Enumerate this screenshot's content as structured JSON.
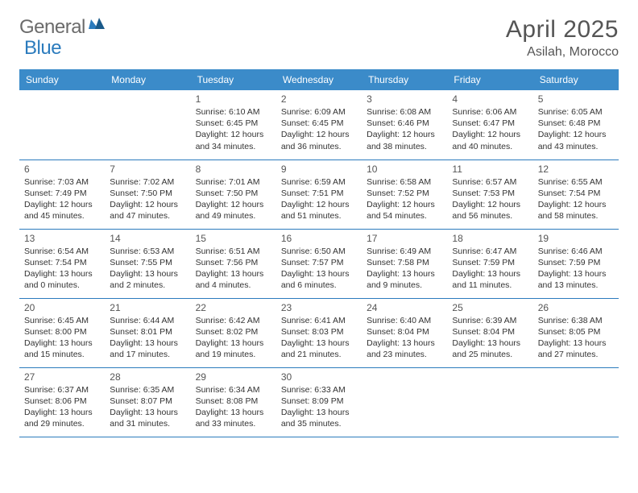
{
  "brand": {
    "part1": "General",
    "part2": "Blue"
  },
  "title": "April 2025",
  "location": "Asilah, Morocco",
  "colors": {
    "header_bg": "#3b8bc9",
    "rule": "#2b7bbd",
    "brand_gray": "#6b6b6b",
    "brand_blue": "#2b7bbd",
    "text": "#333333",
    "title_text": "#555555"
  },
  "day_headers": [
    "Sunday",
    "Monday",
    "Tuesday",
    "Wednesday",
    "Thursday",
    "Friday",
    "Saturday"
  ],
  "weeks": [
    [
      null,
      null,
      {
        "n": "1",
        "sr": "6:10 AM",
        "ss": "6:45 PM",
        "dl": "12 hours and 34 minutes."
      },
      {
        "n": "2",
        "sr": "6:09 AM",
        "ss": "6:45 PM",
        "dl": "12 hours and 36 minutes."
      },
      {
        "n": "3",
        "sr": "6:08 AM",
        "ss": "6:46 PM",
        "dl": "12 hours and 38 minutes."
      },
      {
        "n": "4",
        "sr": "6:06 AM",
        "ss": "6:47 PM",
        "dl": "12 hours and 40 minutes."
      },
      {
        "n": "5",
        "sr": "6:05 AM",
        "ss": "6:48 PM",
        "dl": "12 hours and 43 minutes."
      }
    ],
    [
      {
        "n": "6",
        "sr": "7:03 AM",
        "ss": "7:49 PM",
        "dl": "12 hours and 45 minutes."
      },
      {
        "n": "7",
        "sr": "7:02 AM",
        "ss": "7:50 PM",
        "dl": "12 hours and 47 minutes."
      },
      {
        "n": "8",
        "sr": "7:01 AM",
        "ss": "7:50 PM",
        "dl": "12 hours and 49 minutes."
      },
      {
        "n": "9",
        "sr": "6:59 AM",
        "ss": "7:51 PM",
        "dl": "12 hours and 51 minutes."
      },
      {
        "n": "10",
        "sr": "6:58 AM",
        "ss": "7:52 PM",
        "dl": "12 hours and 54 minutes."
      },
      {
        "n": "11",
        "sr": "6:57 AM",
        "ss": "7:53 PM",
        "dl": "12 hours and 56 minutes."
      },
      {
        "n": "12",
        "sr": "6:55 AM",
        "ss": "7:54 PM",
        "dl": "12 hours and 58 minutes."
      }
    ],
    [
      {
        "n": "13",
        "sr": "6:54 AM",
        "ss": "7:54 PM",
        "dl": "13 hours and 0 minutes."
      },
      {
        "n": "14",
        "sr": "6:53 AM",
        "ss": "7:55 PM",
        "dl": "13 hours and 2 minutes."
      },
      {
        "n": "15",
        "sr": "6:51 AM",
        "ss": "7:56 PM",
        "dl": "13 hours and 4 minutes."
      },
      {
        "n": "16",
        "sr": "6:50 AM",
        "ss": "7:57 PM",
        "dl": "13 hours and 6 minutes."
      },
      {
        "n": "17",
        "sr": "6:49 AM",
        "ss": "7:58 PM",
        "dl": "13 hours and 9 minutes."
      },
      {
        "n": "18",
        "sr": "6:47 AM",
        "ss": "7:59 PM",
        "dl": "13 hours and 11 minutes."
      },
      {
        "n": "19",
        "sr": "6:46 AM",
        "ss": "7:59 PM",
        "dl": "13 hours and 13 minutes."
      }
    ],
    [
      {
        "n": "20",
        "sr": "6:45 AM",
        "ss": "8:00 PM",
        "dl": "13 hours and 15 minutes."
      },
      {
        "n": "21",
        "sr": "6:44 AM",
        "ss": "8:01 PM",
        "dl": "13 hours and 17 minutes."
      },
      {
        "n": "22",
        "sr": "6:42 AM",
        "ss": "8:02 PM",
        "dl": "13 hours and 19 minutes."
      },
      {
        "n": "23",
        "sr": "6:41 AM",
        "ss": "8:03 PM",
        "dl": "13 hours and 21 minutes."
      },
      {
        "n": "24",
        "sr": "6:40 AM",
        "ss": "8:04 PM",
        "dl": "13 hours and 23 minutes."
      },
      {
        "n": "25",
        "sr": "6:39 AM",
        "ss": "8:04 PM",
        "dl": "13 hours and 25 minutes."
      },
      {
        "n": "26",
        "sr": "6:38 AM",
        "ss": "8:05 PM",
        "dl": "13 hours and 27 minutes."
      }
    ],
    [
      {
        "n": "27",
        "sr": "6:37 AM",
        "ss": "8:06 PM",
        "dl": "13 hours and 29 minutes."
      },
      {
        "n": "28",
        "sr": "6:35 AM",
        "ss": "8:07 PM",
        "dl": "13 hours and 31 minutes."
      },
      {
        "n": "29",
        "sr": "6:34 AM",
        "ss": "8:08 PM",
        "dl": "13 hours and 33 minutes."
      },
      {
        "n": "30",
        "sr": "6:33 AM",
        "ss": "8:09 PM",
        "dl": "13 hours and 35 minutes."
      },
      null,
      null,
      null
    ]
  ],
  "labels": {
    "sunrise": "Sunrise:",
    "sunset": "Sunset:",
    "daylight": "Daylight:"
  }
}
